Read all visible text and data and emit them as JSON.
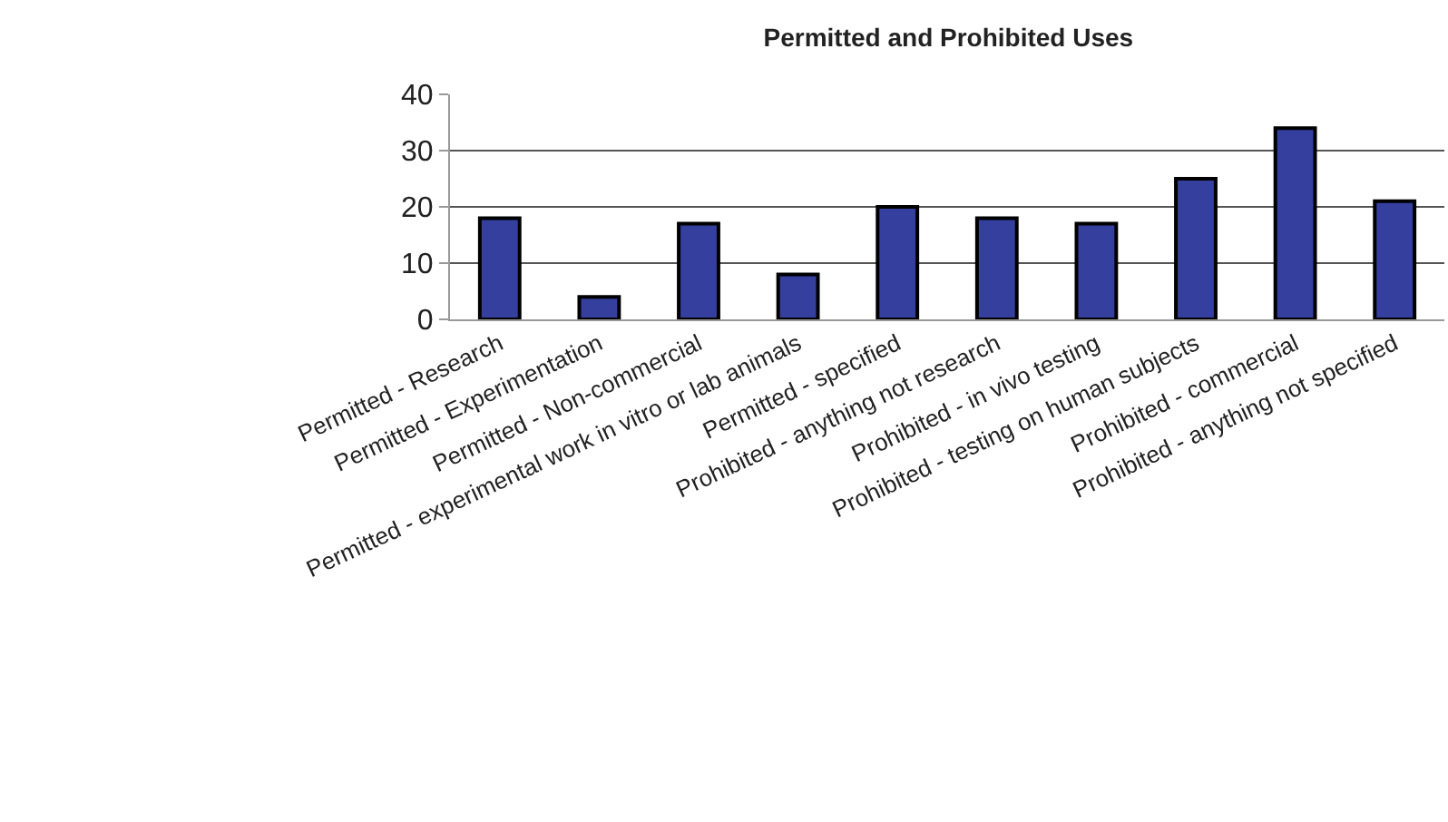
{
  "chart_data": {
    "type": "bar",
    "title": "Permitted and Prohibited Uses",
    "categories": [
      "Permitted - Research",
      "Permitted - Experimentation",
      "Permitted - Non-commercial",
      "Permitted - experimental work in vitro or lab animals",
      "Permitted - specified",
      "Prohibited - anything not research",
      "Prohibited - in vivo testing",
      "Prohibited - testing on human subjects",
      "Prohibited - commercial",
      "Prohibited - anything not specified"
    ],
    "values": [
      18,
      4,
      17,
      8,
      20,
      18,
      17,
      25,
      34,
      21
    ],
    "color": "#353f9e",
    "ylim": [
      0,
      40
    ],
    "yticks": [
      0,
      10,
      20,
      30,
      40
    ],
    "grid": "y",
    "legend": false
  }
}
